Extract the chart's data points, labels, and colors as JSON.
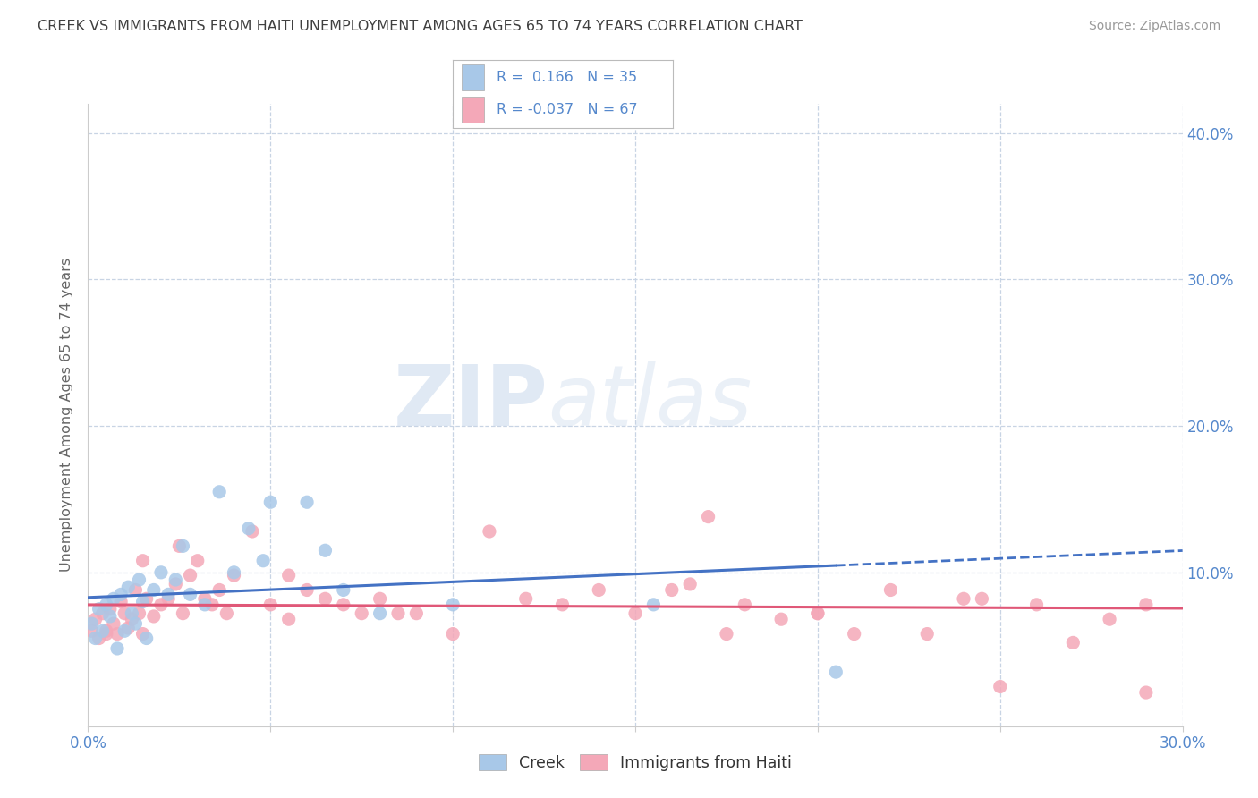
{
  "title": "CREEK VS IMMIGRANTS FROM HAITI UNEMPLOYMENT AMONG AGES 65 TO 74 YEARS CORRELATION CHART",
  "source": "Source: ZipAtlas.com",
  "ylabel": "Unemployment Among Ages 65 to 74 years",
  "xlim": [
    0.0,
    0.3
  ],
  "ylim": [
    -0.005,
    0.42
  ],
  "creek_color": "#a8c8e8",
  "haiti_color": "#f4a8b8",
  "creek_line_color": "#4472c4",
  "haiti_line_color": "#e05878",
  "creek_R": 0.166,
  "creek_N": 35,
  "haiti_R": -0.037,
  "haiti_N": 67,
  "watermark_zip": "ZIP",
  "watermark_atlas": "atlas",
  "background_color": "#ffffff",
  "grid_color": "#c8d4e4",
  "title_color": "#404040",
  "tick_color": "#5588cc",
  "creek_x": [
    0.001,
    0.002,
    0.003,
    0.004,
    0.005,
    0.006,
    0.007,
    0.008,
    0.009,
    0.01,
    0.011,
    0.012,
    0.013,
    0.014,
    0.015,
    0.016,
    0.018,
    0.02,
    0.022,
    0.024,
    0.026,
    0.028,
    0.032,
    0.036,
    0.04,
    0.044,
    0.048,
    0.05,
    0.06,
    0.065,
    0.07,
    0.08,
    0.1,
    0.155,
    0.205
  ],
  "creek_y": [
    0.065,
    0.055,
    0.075,
    0.06,
    0.078,
    0.07,
    0.082,
    0.048,
    0.085,
    0.06,
    0.09,
    0.072,
    0.065,
    0.095,
    0.08,
    0.055,
    0.088,
    0.1,
    0.085,
    0.095,
    0.118,
    0.085,
    0.078,
    0.155,
    0.1,
    0.13,
    0.108,
    0.148,
    0.148,
    0.115,
    0.088,
    0.072,
    0.078,
    0.078,
    0.032
  ],
  "haiti_x": [
    0.001,
    0.002,
    0.003,
    0.004,
    0.005,
    0.006,
    0.007,
    0.008,
    0.009,
    0.01,
    0.011,
    0.012,
    0.013,
    0.014,
    0.015,
    0.016,
    0.018,
    0.02,
    0.022,
    0.024,
    0.026,
    0.028,
    0.03,
    0.032,
    0.034,
    0.036,
    0.038,
    0.04,
    0.045,
    0.05,
    0.055,
    0.06,
    0.065,
    0.07,
    0.075,
    0.08,
    0.09,
    0.1,
    0.11,
    0.12,
    0.13,
    0.14,
    0.15,
    0.16,
    0.17,
    0.18,
    0.19,
    0.2,
    0.21,
    0.22,
    0.23,
    0.24,
    0.25,
    0.26,
    0.27,
    0.28,
    0.29,
    0.005,
    0.015,
    0.025,
    0.055,
    0.085,
    0.165,
    0.175,
    0.2,
    0.245,
    0.29
  ],
  "haiti_y": [
    0.06,
    0.068,
    0.055,
    0.072,
    0.06,
    0.075,
    0.065,
    0.058,
    0.08,
    0.072,
    0.062,
    0.068,
    0.088,
    0.072,
    0.058,
    0.082,
    0.07,
    0.078,
    0.082,
    0.092,
    0.072,
    0.098,
    0.108,
    0.082,
    0.078,
    0.088,
    0.072,
    0.098,
    0.128,
    0.078,
    0.098,
    0.088,
    0.082,
    0.078,
    0.072,
    0.082,
    0.072,
    0.058,
    0.128,
    0.082,
    0.078,
    0.088,
    0.072,
    0.088,
    0.138,
    0.078,
    0.068,
    0.072,
    0.058,
    0.088,
    0.058,
    0.082,
    0.022,
    0.078,
    0.052,
    0.068,
    0.078,
    0.058,
    0.108,
    0.118,
    0.068,
    0.072,
    0.092,
    0.058,
    0.072,
    0.082,
    0.018
  ]
}
